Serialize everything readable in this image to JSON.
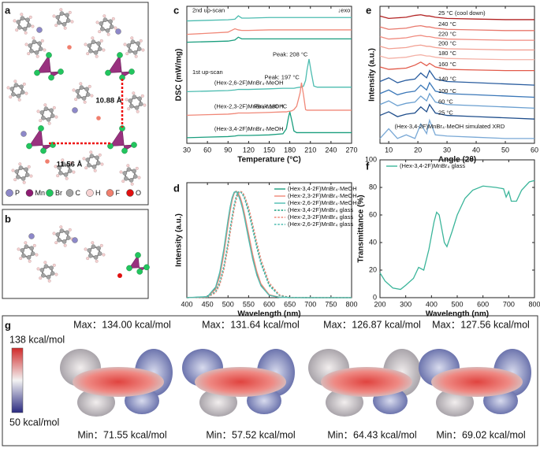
{
  "panel_labels": [
    "a",
    "b",
    "c",
    "d",
    "e",
    "f",
    "g"
  ],
  "structure_a": {
    "distances": [
      "10.88 Å",
      "11.56 Å"
    ],
    "legend": [
      {
        "label": "P",
        "color": "#8d88c9"
      },
      {
        "label": "Mn",
        "color": "#8e1b72"
      },
      {
        "label": "Br",
        "color": "#22c55e"
      },
      {
        "label": "C",
        "color": "#a3a3a3"
      },
      {
        "label": "H",
        "color": "#f6d2d2"
      },
      {
        "label": "F",
        "color": "#f07f6e"
      },
      {
        "label": "O",
        "color": "#e01010"
      }
    ]
  },
  "chart_data": [
    {
      "type": "line",
      "ylabel": "DSC (mW/mg)",
      "xlabel": "Temperature (°C)",
      "x": [
        30,
        60,
        90,
        100,
        105,
        110,
        120,
        150,
        170,
        175,
        178,
        180,
        183,
        186,
        190,
        195,
        197,
        200,
        203,
        205,
        208,
        211,
        215,
        220,
        240,
        270
      ],
      "xlim": [
        30,
        270
      ],
      "xticks": [
        30,
        60,
        90,
        120,
        150,
        180,
        210,
        240,
        270
      ],
      "ylim": [
        0,
        12.2
      ],
      "annotations": [
        "2nd up-scan",
        "↓exo",
        "1st up-scan",
        "Peak: 208 °C",
        "Peak: 197 °C",
        "Peak:180 °C"
      ],
      "series": [
        {
          "color": "#4cbcb0",
          "values": [
            10.9,
            10.95,
            11.0,
            11.05,
            11.35,
            11.15,
            11.15,
            11.2,
            11.2,
            11.2,
            11.2,
            11.2,
            11.2,
            11.2,
            11.2,
            11.2,
            11.2,
            11.2,
            11.2,
            11.2,
            11.2,
            11.2,
            11.2,
            11.2,
            11.2,
            11.2
          ]
        },
        {
          "color": "#f08878",
          "values": [
            9.7,
            9.8,
            9.9,
            10.2,
            10.1,
            10.05,
            10.05,
            10.1,
            10.1,
            10.1,
            10.1,
            10.1,
            10.1,
            10.1,
            10.1,
            10.1,
            10.1,
            10.1,
            10.1,
            10.1,
            10.1,
            10.1,
            10.1,
            10.1,
            10.1,
            10.1
          ]
        },
        {
          "color": "#1a9e7e",
          "values": [
            9.0,
            9.05,
            9.1,
            9.2,
            9.45,
            9.3,
            9.3,
            9.3,
            9.3,
            9.3,
            9.3,
            9.3,
            9.3,
            9.3,
            9.3,
            9.3,
            9.3,
            9.3,
            9.3,
            9.3,
            9.3,
            9.3,
            9.3,
            9.3,
            9.3,
            9.3
          ]
        },
        {
          "name": "(Hex-2,6-2F)MnBr₄·MeOH",
          "color": "#4cbcb0",
          "values": [
            4.6,
            4.65,
            4.7,
            4.75,
            4.8,
            4.8,
            4.8,
            4.85,
            4.9,
            4.9,
            4.9,
            4.9,
            4.9,
            4.9,
            4.95,
            5.0,
            5.0,
            5.1,
            5.6,
            6.5,
            7.5,
            6.4,
            5.1,
            5.0,
            5.0,
            5.0
          ]
        },
        {
          "name": "(Hex-2,3-2F)MnBr₄·MeOH",
          "color": "#f08878",
          "values": [
            2.5,
            2.55,
            2.6,
            2.65,
            2.7,
            2.7,
            2.7,
            2.75,
            2.8,
            2.8,
            2.85,
            2.85,
            2.9,
            3.0,
            3.3,
            4.5,
            5.4,
            4.3,
            3.0,
            2.95,
            2.95,
            2.95,
            2.95,
            2.95,
            2.95,
            2.95
          ]
        },
        {
          "name": "(Hex-3,4-2F)MnBr₄·MeOH",
          "color": "#1a9e7e",
          "values": [
            0.5,
            0.55,
            0.6,
            0.65,
            0.7,
            0.7,
            0.7,
            0.75,
            0.85,
            1.3,
            2.3,
            2.8,
            2.0,
            1.1,
            0.95,
            0.95,
            0.95,
            0.95,
            0.95,
            0.95,
            0.95,
            0.95,
            0.95,
            0.95,
            0.95,
            0.95
          ]
        }
      ]
    },
    {
      "type": "line",
      "ylabel": "Intensity (a.u.)",
      "xlabel": "Wavelength (nm)",
      "legend": "upper right",
      "x": [
        400,
        450,
        470,
        480,
        490,
        500,
        505,
        510,
        515,
        520,
        525,
        530,
        535,
        540,
        550,
        560,
        570,
        580,
        600,
        625,
        650,
        700,
        800
      ],
      "xlim": [
        400,
        800
      ],
      "xticks": [
        400,
        450,
        500,
        550,
        600,
        650,
        700,
        750,
        800
      ],
      "ylim": [
        0,
        1.08
      ],
      "series": [
        {
          "name": "(Hex-3,4-2F)MnBr₄·MeOH",
          "color": "#1a9e7e",
          "values": [
            0,
            0.008,
            0.09,
            0.225,
            0.445,
            0.715,
            0.84,
            0.936,
            0.99,
            1.0,
            0.973,
            0.923,
            0.852,
            0.764,
            0.566,
            0.375,
            0.223,
            0.118,
            0.024,
            0.003,
            0,
            0,
            0
          ]
        },
        {
          "name": "(Hex-2,3-2F)MnBr₄·MeOH",
          "color": "#f08878",
          "values": [
            0,
            0.006,
            0.08,
            0.2,
            0.41,
            0.68,
            0.81,
            0.915,
            0.98,
            1.0,
            0.98,
            0.94,
            0.875,
            0.79,
            0.6,
            0.405,
            0.245,
            0.13,
            0.028,
            0.004,
            0,
            0,
            0
          ]
        },
        {
          "name": "(Hex-2,6-2F)MnBr₄·MeOH",
          "color": "#4cbcb0",
          "values": [
            0,
            0.01,
            0.1,
            0.24,
            0.46,
            0.73,
            0.85,
            0.94,
            0.99,
            0.995,
            0.965,
            0.91,
            0.84,
            0.75,
            0.55,
            0.36,
            0.21,
            0.11,
            0.022,
            0.003,
            0,
            0,
            0
          ]
        },
        {
          "name": "(Hex-3,4-2F)MnBr₄ glass",
          "color": "#1a9e7e",
          "linestyle": "dashed",
          "values": [
            0,
            0.005,
            0.054,
            0.135,
            0.285,
            0.506,
            0.632,
            0.755,
            0.864,
            0.946,
            0.992,
            0.998,
            0.98,
            0.943,
            0.82,
            0.658,
            0.487,
            0.331,
            0.121,
            0.021,
            0.002,
            0,
            0
          ]
        },
        {
          "name": "(Hex-2,3-2F)MnBr₄ glass",
          "color": "#f08878",
          "linestyle": "dashed",
          "values": [
            0,
            0.004,
            0.045,
            0.12,
            0.26,
            0.47,
            0.6,
            0.72,
            0.83,
            0.92,
            0.975,
            1.0,
            0.99,
            0.96,
            0.85,
            0.69,
            0.52,
            0.36,
            0.14,
            0.026,
            0.003,
            0,
            0
          ]
        },
        {
          "name": "(Hex-2,6-2F)MnBr₄ glass",
          "color": "#4cbcb0",
          "linestyle": "dashed",
          "values": [
            0,
            0.006,
            0.06,
            0.15,
            0.3,
            0.52,
            0.65,
            0.77,
            0.875,
            0.955,
            0.995,
            0.995,
            0.97,
            0.93,
            0.8,
            0.635,
            0.465,
            0.315,
            0.11,
            0.018,
            0.002,
            0,
            0
          ]
        }
      ]
    },
    {
      "type": "line",
      "ylabel": "Intensity (a.u.)",
      "xlabel": "Angle (2θ)",
      "x": [
        7,
        10,
        13,
        16,
        19,
        21,
        23,
        24,
        26,
        30,
        40,
        50,
        60
      ],
      "xlim": [
        7,
        60
      ],
      "xticks": [
        10,
        20,
        30,
        40,
        50,
        60
      ],
      "ylim": [
        0,
        11.3
      ],
      "series": [
        {
          "name": "25 °C (cool down)",
          "color": "#b22222",
          "values": [
            10.5,
            10.3,
            10.35,
            10.4,
            10.55,
            10.6,
            10.5,
            10.5,
            10.4,
            10.3,
            10.25,
            10.2,
            10.2
          ]
        },
        {
          "name": "240 °C",
          "color": "#e8776b",
          "values": [
            9.6,
            9.4,
            9.45,
            9.5,
            9.65,
            9.7,
            9.6,
            9.6,
            9.5,
            9.4,
            9.35,
            9.3,
            9.3
          ]
        },
        {
          "name": "220 °C",
          "color": "#f08c80",
          "values": [
            8.8,
            8.6,
            8.65,
            8.7,
            8.85,
            8.9,
            8.8,
            8.8,
            8.7,
            8.6,
            8.55,
            8.5,
            8.5
          ]
        },
        {
          "name": "200 °C",
          "color": "#f2a093",
          "values": [
            8.0,
            7.8,
            7.85,
            7.9,
            8.05,
            8.1,
            8.0,
            8.0,
            7.9,
            7.8,
            7.75,
            7.7,
            7.7
          ]
        },
        {
          "name": "180 °C",
          "color": "#f4b1a6",
          "values": [
            7.2,
            7.0,
            7.05,
            7.1,
            7.25,
            7.3,
            7.2,
            7.2,
            7.1,
            7.0,
            6.95,
            6.9,
            6.9
          ]
        },
        {
          "name": "160 °C",
          "color": "#e25a4a",
          "values": [
            6.3,
            6.1,
            6.15,
            6.2,
            6.45,
            6.7,
            6.4,
            6.6,
            6.3,
            6.1,
            6.05,
            6.0,
            6.0
          ]
        },
        {
          "name": "140 °C",
          "color": "#2a5d9f",
          "values": [
            5.1,
            5.4,
            5.0,
            5.2,
            5.3,
            5.8,
            5.4,
            6.0,
            5.3,
            5.1,
            5.0,
            4.9,
            4.8
          ]
        },
        {
          "name": "100 °C",
          "color": "#3a77b8",
          "values": [
            4.1,
            4.4,
            4.0,
            4.2,
            4.3,
            4.8,
            4.4,
            5.0,
            4.3,
            4.1,
            4.0,
            3.9,
            3.8
          ]
        },
        {
          "name": "60 °C",
          "color": "#6a9fd0",
          "values": [
            3.2,
            3.5,
            3.1,
            3.3,
            3.4,
            3.9,
            3.5,
            4.1,
            3.4,
            3.2,
            3.1,
            3.0,
            2.9
          ]
        },
        {
          "name": "25 °C",
          "color": "#1f4e8c",
          "values": [
            2.3,
            2.6,
            2.2,
            2.4,
            2.5,
            3.0,
            2.6,
            3.2,
            2.5,
            2.3,
            2.2,
            2.1,
            2.0
          ]
        },
        {
          "name": "(Hex-3,4-2F)MnBr₄·MeOH simulated XRD",
          "color": "#7aa9d6",
          "values": [
            0.4,
            1.2,
            0.4,
            0.7,
            0.4,
            1.6,
            0.8,
            1.9,
            0.7,
            0.6,
            0.5,
            0.4,
            0.4
          ]
        }
      ]
    },
    {
      "type": "line",
      "ylabel": "Transmittance (%)",
      "xlabel": "Wavelength (nm)",
      "legend": "upper left",
      "x": [
        200,
        220,
        250,
        280,
        300,
        330,
        350,
        370,
        390,
        410,
        420,
        430,
        450,
        460,
        480,
        500,
        530,
        560,
        600,
        650,
        680,
        690,
        700,
        710,
        730,
        750,
        780,
        800
      ],
      "xlim": [
        200,
        800
      ],
      "xticks": [
        200,
        300,
        400,
        500,
        600,
        700,
        800
      ],
      "ylim": [
        0,
        100
      ],
      "yticks": [
        0,
        20,
        40,
        60,
        80,
        100
      ],
      "series": [
        {
          "name": "(Hex-3,4-2F)MnBr₄ glass",
          "color": "#3bb59a",
          "values": [
            18,
            12,
            7,
            6,
            9,
            14,
            22,
            20,
            35,
            55,
            62,
            60,
            40,
            37,
            48,
            60,
            72,
            78,
            81,
            80,
            79,
            73,
            77,
            70,
            70,
            78,
            84,
            85
          ]
        }
      ]
    }
  ],
  "esp_g": {
    "scale_max": "138 kcal/mol",
    "scale_min": "50 kcal/mol",
    "maps": [
      {
        "max": "Max：134.00 kcal/mol",
        "min": "Min：71.55 kcal/mol"
      },
      {
        "max": "Max：131.64 kcal/mol",
        "min": "Min：57.52 kcal/mol"
      },
      {
        "max": "Max：126.87 kcal/mol",
        "min": "Min：64.43 kcal/mol"
      },
      {
        "max": "Max：127.56 kcal/mol",
        "min": "Min：69.02 kcal/mol"
      }
    ]
  }
}
